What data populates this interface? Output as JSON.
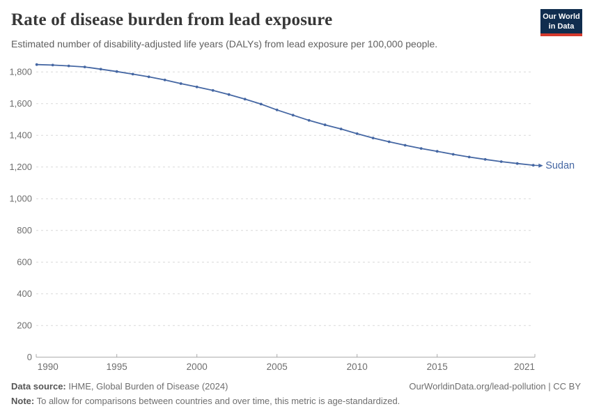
{
  "logo": {
    "line1": "Our World",
    "line2": "in Data",
    "bg_color": "#102d4e",
    "accent_color": "#d5392d"
  },
  "chart_data": {
    "type": "line",
    "title": "Rate of disease burden from lead exposure",
    "subtitle": "Estimated number of disability-adjusted life years (DALYs) from lead exposure per 100,000 people.",
    "xlabel": "",
    "ylabel": "",
    "x": [
      1990,
      1991,
      1992,
      1993,
      1994,
      1995,
      1996,
      1997,
      1998,
      1999,
      2000,
      2001,
      2002,
      2003,
      2004,
      2005,
      2006,
      2007,
      2008,
      2009,
      2010,
      2011,
      2012,
      2013,
      2014,
      2015,
      2016,
      2017,
      2018,
      2019,
      2020,
      2021
    ],
    "series": [
      {
        "name": "Sudan",
        "color": "#4567a3",
        "values": [
          1846,
          1843,
          1838,
          1831,
          1817,
          1802,
          1786,
          1769,
          1749,
          1726,
          1705,
          1683,
          1657,
          1628,
          1597,
          1560,
          1527,
          1494,
          1466,
          1440,
          1410,
          1383,
          1359,
          1337,
          1317,
          1299,
          1280,
          1263,
          1248,
          1234,
          1222,
          1211
        ]
      }
    ],
    "xticks": [
      1990,
      1995,
      2000,
      2005,
      2010,
      2015,
      2021
    ],
    "yticks": [
      0,
      200,
      400,
      600,
      800,
      1000,
      1200,
      1400,
      1600,
      1800
    ],
    "ylim": [
      0,
      1870
    ],
    "xlim": [
      1990,
      2021
    ],
    "grid": "horizontal-dashed",
    "legend_position": "end-of-line-label",
    "markers": "dots"
  },
  "styles": {
    "grid_color": "#d9d9d9",
    "axis_color": "#a8a8a8",
    "tick_label_color": "#6e6e6e",
    "title_color": "#373737",
    "subtitle_color": "#5f5f5f"
  },
  "footer": {
    "source_bold": "Data source:",
    "source_rest": " IHME, Global Burden of Disease (2024)",
    "credit": "OurWorldinData.org/lead-pollution | CC BY",
    "note_bold": "Note:",
    "note_rest": " To allow for comparisons between countries and over time, this metric is age-standardized."
  }
}
